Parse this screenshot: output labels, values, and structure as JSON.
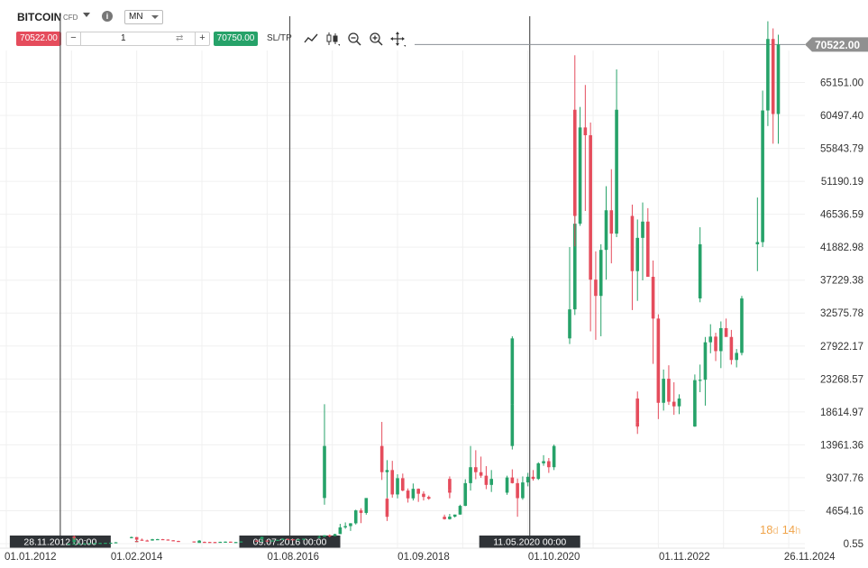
{
  "toolbar": {
    "symbol": "BITCOIN",
    "symbol_tag": "CFD",
    "info_label": "i",
    "timeframe": "MN",
    "sell_price": "70522.00",
    "buy_price": "70750.00",
    "quantity": "1",
    "minus_label": "−",
    "plus_label": "+",
    "sltp_label": "SL/TP",
    "tools": [
      "line-tool-icon",
      "candles-icon",
      "zoom-out-icon",
      "zoom-in-icon",
      "crosshair-icon"
    ]
  },
  "countdown": {
    "days": "18",
    "days_unit": "d",
    "hours": "14",
    "hours_unit": "h"
  },
  "colors": {
    "up": "#26a269",
    "down": "#e54c5c",
    "countdown": "#f0a44a",
    "label_bg": "#2f3337",
    "current_price_bg": "#909090"
  },
  "chart_data": {
    "type": "candlestick",
    "title": "",
    "xlabel": "",
    "ylabel": "",
    "ylim": [
      0.55,
      70522
    ],
    "y_ticks": [
      "0.55",
      "4654.16",
      "9307.76",
      "13961.36",
      "18614.97",
      "23268.57",
      "27922.17",
      "32575.78",
      "37229.38",
      "41882.98",
      "46536.59",
      "51190.19",
      "55843.79",
      "60497.40",
      "65151.00"
    ],
    "x_ticks": [
      "01.01.2012",
      "01.02.2014",
      "01.08.2016",
      "01.09.2018",
      "01.10.2020",
      "01.11.2022",
      "26.11.2024"
    ],
    "x_tick_months": [
      0,
      25,
      55,
      80,
      105,
      130,
      154
    ],
    "current_price": "70522.00",
    "markers": [
      {
        "label": "28.11.2012 00:00",
        "month": 10
      },
      {
        "label": "09.07.2016 00:00",
        "month": 54
      },
      {
        "label": "11.05.2020 00:00",
        "month": 100
      }
    ],
    "start_month": "2012-01",
    "candles": [
      [
        2013.0,
        10,
        12,
        9,
        11
      ],
      [
        2013.1,
        11,
        17,
        10,
        15
      ],
      [
        2013.2,
        15,
        40,
        14,
        33
      ],
      [
        2013.3,
        33,
        50,
        20,
        35
      ],
      [
        2013.4,
        35,
        100,
        30,
        95
      ],
      [
        2013.5,
        95,
        120,
        60,
        97
      ],
      [
        2013.6,
        97,
        130,
        70,
        98
      ],
      [
        2013.7,
        98,
        130,
        90,
        125
      ],
      [
        2013.8,
        125,
        145,
        100,
        135
      ],
      [
        2013.9,
        135,
        220,
        125,
        198
      ],
      [
        2013.1,
        198,
        1100,
        180,
        1000
      ],
      [
        2013.11,
        1000,
        1160,
        500,
        805
      ],
      [
        2014.0,
        805,
        1000,
        750,
        930
      ],
      [
        2014.1,
        930,
        940,
        400,
        560
      ],
      [
        2014.2,
        560,
        720,
        440,
        450
      ],
      [
        2014.3,
        450,
        560,
        340,
        440
      ],
      [
        2014.4,
        440,
        680,
        420,
        630
      ],
      [
        2014.5,
        630,
        680,
        550,
        640
      ],
      [
        2014.6,
        640,
        660,
        560,
        585
      ],
      [
        2014.7,
        585,
        600,
        450,
        480
      ],
      [
        2014.8,
        480,
        495,
        380,
        385
      ],
      [
        2014.9,
        385,
        410,
        280,
        340
      ],
      [
        2014.1,
        340,
        460,
        310,
        375
      ],
      [
        2014.11,
        375,
        400,
        300,
        320
      ],
      [
        2015.0,
        320,
        320,
        170,
        230
      ],
      [
        2015.1,
        230,
        270,
        200,
        255
      ],
      [
        2015.2,
        255,
        300,
        230,
        245
      ],
      [
        2015.3,
        245,
        260,
        200,
        235
      ],
      [
        2015.4,
        235,
        250,
        220,
        230
      ],
      [
        2015.5,
        230,
        270,
        220,
        263
      ],
      [
        2015.6,
        263,
        320,
        250,
        284
      ],
      [
        2015.7,
        284,
        290,
        200,
        230
      ],
      [
        2015.8,
        230,
        250,
        220,
        236
      ],
      [
        2015.9,
        236,
        330,
        230,
        314
      ],
      [
        2015.1,
        314,
        500,
        310,
        377
      ],
      [
        2015.11,
        377,
        470,
        350,
        430
      ],
      [
        2016.0,
        430,
        460,
        350,
        368
      ],
      [
        2016.1,
        368,
        440,
        365,
        437
      ],
      [
        2016.2,
        437,
        440,
        400,
        416
      ],
      [
        2016.3,
        416,
        470,
        400,
        448
      ],
      [
        2016.4,
        448,
        550,
        440,
        531
      ],
      [
        2016.5,
        531,
        780,
        520,
        675
      ],
      [
        2016.6,
        675,
        700,
        600,
        622
      ],
      [
        2016.7,
        622,
        630,
        520,
        575
      ],
      [
        2016.8,
        575,
        620,
        570,
        609
      ],
      [
        2016.9,
        609,
        720,
        600,
        700
      ],
      [
        2016.1,
        700,
        750,
        690,
        745
      ],
      [
        2016.11,
        745,
        980,
        740,
        963
      ],
      [
        2017.0,
        963,
        1150,
        750,
        970
      ],
      [
        2017.1,
        970,
        1200,
        950,
        1190
      ],
      [
        2017.2,
        1190,
        1300,
        900,
        1080
      ],
      [
        2017.3,
        1080,
        1400,
        1050,
        1350
      ],
      [
        2017.4,
        1350,
        2800,
        1350,
        2300
      ],
      [
        2017.5,
        2300,
        3000,
        2100,
        2480
      ],
      [
        2017.6,
        2480,
        2900,
        1800,
        2875
      ],
      [
        2017.7,
        2875,
        4800,
        2700,
        4700
      ],
      [
        2017.8,
        4700,
        5000,
        2900,
        4340
      ],
      [
        2017.9,
        4340,
        6400,
        4100,
        6450
      ],
      [
        2017.1,
        6450,
        11500,
        5500,
        10000
      ],
      [
        2017.11,
        10000,
        19700,
        9800,
        13800
      ],
      [
        2018.0,
        13800,
        17200,
        9000,
        10100
      ],
      [
        2018.1,
        10100,
        11800,
        6000,
        10400
      ],
      [
        2018.2,
        10400,
        11700,
        6500,
        6950
      ],
      [
        2018.3,
        6950,
        9800,
        6400,
        9250
      ],
      [
        2018.4,
        9250,
        9900,
        7400,
        7500
      ],
      [
        2018.5,
        7500,
        7800,
        5800,
        6400
      ],
      [
        2018.6,
        6400,
        8500,
        6100,
        7750
      ],
      [
        2018.7,
        7750,
        7800,
        5900,
        7050
      ],
      [
        2018.8,
        7050,
        7400,
        6100,
        6600
      ],
      [
        2018.9,
        6600,
        6800,
        6200,
        6350
      ],
      [
        2018.1,
        6350,
        6500,
        3700,
        4000
      ],
      [
        2018.11,
        4000,
        4400,
        3200,
        3800
      ],
      [
        2019.0,
        3800,
        4100,
        3400,
        3460
      ],
      [
        2019.1,
        3460,
        4200,
        3400,
        3820
      ],
      [
        2019.2,
        3820,
        4100,
        3700,
        4110
      ],
      [
        2019.3,
        4110,
        5500,
        4100,
        5340
      ],
      [
        2019.4,
        5340,
        9100,
        5300,
        8550
      ],
      [
        2019.5,
        8550,
        13800,
        7500,
        10800
      ],
      [
        2019.6,
        10800,
        13200,
        9100,
        10100
      ],
      [
        2019.7,
        10100,
        12300,
        9300,
        9600
      ],
      [
        2019.8,
        9600,
        10950,
        7700,
        8300
      ],
      [
        2019.9,
        8300,
        10400,
        7300,
        9150
      ],
      [
        2019.1,
        9150,
        9500,
        6500,
        7550
      ],
      [
        2019.11,
        7550,
        7750,
        6400,
        7200
      ],
      [
        2020.0,
        7200,
        9600,
        6900,
        9350
      ],
      [
        2020.1,
        9350,
        10500,
        8500,
        8550
      ],
      [
        2020.2,
        8550,
        9200,
        3800,
        6430
      ],
      [
        2020.3,
        6430,
        9500,
        6200,
        8650
      ],
      [
        2020.4,
        8650,
        10000,
        8100,
        9450
      ],
      [
        2020.5,
        9450,
        10400,
        8900,
        9150
      ],
      [
        2020.6,
        9150,
        11500,
        9000,
        11350
      ],
      [
        2020.7,
        11350,
        12500,
        11000,
        11650
      ],
      [
        2020.8,
        11650,
        12100,
        10000,
        10800
      ],
      [
        2020.9,
        10800,
        14000,
        10400,
        13800
      ],
      [
        2020.1,
        13800,
        19900,
        13300,
        19700
      ],
      [
        2020.11,
        19700,
        29300,
        17600,
        29000
      ],
      [
        2021.0,
        29000,
        41900,
        28200,
        33100
      ],
      [
        2021.1,
        33100,
        58400,
        32300,
        45200
      ],
      [
        2021.2,
        45200,
        61700,
        44900,
        58800
      ],
      [
        2021.3,
        58800,
        64800,
        47000,
        57700
      ],
      [
        2021.4,
        57700,
        59500,
        30000,
        37300
      ],
      [
        2021.5,
        37300,
        41300,
        28800,
        35000
      ],
      [
        2021.6,
        35000,
        42300,
        29300,
        41500
      ],
      [
        2021.7,
        41500,
        50500,
        37300,
        47100
      ],
      [
        2021.8,
        47100,
        52900,
        39600,
        43800
      ],
      [
        2021.9,
        43800,
        67000,
        43300,
        61300
      ],
      [
        2021.1,
        61300,
        69000,
        53300,
        57000
      ],
      [
        2021.11,
        57000,
        59000,
        42000,
        46300
      ],
      [
        2022.0,
        46300,
        47900,
        33000,
        38500
      ],
      [
        2022.1,
        38500,
        45800,
        34300,
        43200
      ],
      [
        2022.2,
        43200,
        48200,
        37200,
        45500
      ],
      [
        2022.3,
        45500,
        47400,
        37700,
        37700
      ],
      [
        2022.4,
        37700,
        40000,
        25400,
        31800
      ],
      [
        2022.5,
        31800,
        32400,
        17600,
        19900
      ],
      [
        2022.6,
        19900,
        24600,
        18800,
        23300
      ],
      [
        2022.7,
        23300,
        25200,
        19600,
        20050
      ],
      [
        2022.8,
        20050,
        22800,
        18200,
        19400
      ],
      [
        2022.9,
        19400,
        21100,
        18300,
        20500
      ],
      [
        2022.1,
        20500,
        21500,
        15500,
        17150
      ],
      [
        2022.11,
        17150,
        18400,
        16250,
        16550
      ],
      [
        2023.0,
        16550,
        23900,
        16500,
        23100
      ],
      [
        2023.1,
        23100,
        25300,
        21400,
        23150
      ],
      [
        2023.2,
        23150,
        29200,
        19500,
        28450
      ],
      [
        2023.3,
        28450,
        31000,
        26900,
        29250
      ],
      [
        2023.4,
        29250,
        29800,
        25800,
        27200
      ],
      [
        2023.5,
        27200,
        31400,
        24800,
        30450
      ],
      [
        2023.6,
        30450,
        31800,
        29500,
        29200
      ],
      [
        2023.7,
        29200,
        30200,
        25300,
        25950
      ],
      [
        2023.8,
        25950,
        27500,
        24900,
        26950
      ],
      [
        2023.9,
        26950,
        35000,
        26600,
        34650
      ],
      [
        2023.1,
        34650,
        38400,
        34100,
        37700
      ],
      [
        2023.11,
        37700,
        44700,
        37600,
        42300
      ],
      [
        2024.0,
        42300,
        48900,
        38500,
        42600
      ],
      [
        2024.1,
        42600,
        64000,
        41900,
        61200
      ],
      [
        2024.2,
        61200,
        73800,
        59000,
        71300
      ],
      [
        2024.3,
        71300,
        72800,
        56500,
        60700
      ],
      [
        2024.4,
        60700,
        71900,
        56500,
        70522
      ]
    ]
  }
}
